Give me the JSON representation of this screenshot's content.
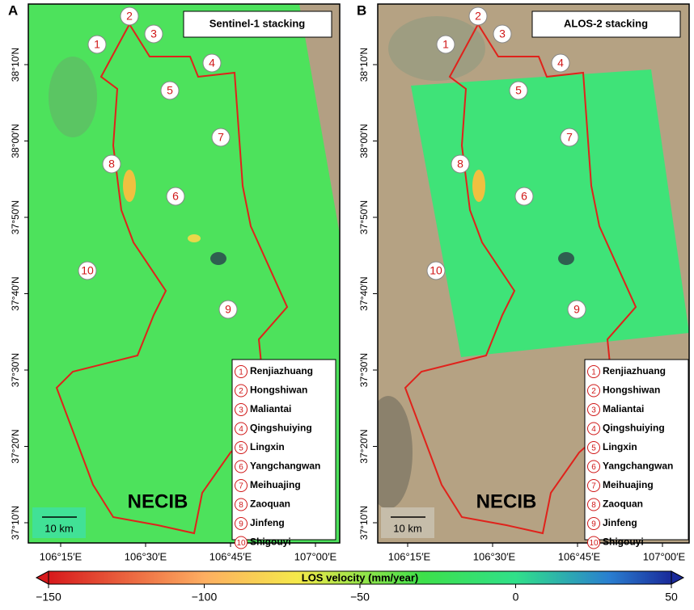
{
  "panels": [
    {
      "letter": "A",
      "title": "Sentinel-1 stacking",
      "scale_bar": "10 km",
      "region_label": "NECIB"
    },
    {
      "letter": "B",
      "title": "ALOS-2 stacking",
      "scale_bar": "10 km",
      "region_label": "NECIB"
    }
  ],
  "lat_labels": [
    "38°10′N",
    "38°00′N",
    "37°50′N",
    "37°40′N",
    "37°30′N",
    "37°20′N",
    "37°10′N"
  ],
  "lon_labels": [
    "106°15′E",
    "106°30′E",
    "106°45′E",
    "107°00′E"
  ],
  "sites": [
    {
      "number": "1",
      "name": "Renjiazhuang"
    },
    {
      "number": "2",
      "name": "Hongshiwan"
    },
    {
      "number": "3",
      "name": "Maliantai"
    },
    {
      "number": "4",
      "name": "Qingshuiying"
    },
    {
      "number": "5",
      "name": "Lingxin"
    },
    {
      "number": "6",
      "name": "Yangchangwan"
    },
    {
      "number": "7",
      "name": "Meihuajing"
    },
    {
      "number": "8",
      "name": "Zaoquan"
    },
    {
      "number": "9",
      "name": "Jinfeng"
    },
    {
      "number": "10",
      "name": "Shigouyi"
    }
  ],
  "colorbar": {
    "title": "LOS velocity (mm/year)",
    "range": [
      -150,
      50
    ],
    "ticks": [
      {
        "value": -150,
        "label": "−150"
      },
      {
        "value": -100,
        "label": "−100"
      },
      {
        "value": -50,
        "label": "−50"
      },
      0,
      50
    ]
  }
}
